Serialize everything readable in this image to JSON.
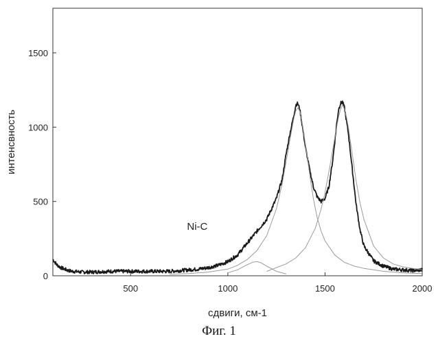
{
  "chart_data": {
    "type": "line",
    "title": "",
    "xlabel": "сдвиги, см-1",
    "ylabel": "интенсвность",
    "xlim": [
      100,
      2000
    ],
    "ylim": [
      0,
      1800
    ],
    "x_ticks": [
      500,
      1000,
      1500,
      2000
    ],
    "y_ticks": [
      0,
      500,
      1000,
      1500
    ],
    "grid": false,
    "annotations": [
      {
        "text": "Ni-C",
        "x": 790,
        "y": 310
      }
    ],
    "caption": "Фиг. 1",
    "series": [
      {
        "role": "measured spectrum",
        "x": [
          100,
          120,
          140,
          160,
          180,
          200,
          250,
          300,
          350,
          400,
          450,
          500,
          550,
          600,
          650,
          700,
          750,
          800,
          850,
          900,
          950,
          1000,
          1050,
          1100,
          1150,
          1200,
          1250,
          1280,
          1300,
          1320,
          1340,
          1350,
          1360,
          1370,
          1380,
          1400,
          1420,
          1440,
          1460,
          1480,
          1500,
          1520,
          1540,
          1560,
          1570,
          1580,
          1590,
          1600,
          1620,
          1640,
          1660,
          1680,
          1700,
          1750,
          1800,
          1850,
          1900,
          1950,
          2000
        ],
        "y": [
          110,
          75,
          55,
          45,
          35,
          30,
          25,
          25,
          28,
          30,
          30,
          30,
          30,
          30,
          30,
          30,
          35,
          40,
          45,
          55,
          70,
          95,
          140,
          220,
          300,
          380,
          520,
          650,
          820,
          960,
          1080,
          1150,
          1160,
          1120,
          1040,
          860,
          720,
          600,
          530,
          500,
          520,
          600,
          780,
          1020,
          1120,
          1160,
          1170,
          1130,
          960,
          720,
          480,
          310,
          200,
          100,
          65,
          45,
          40,
          35,
          40
        ]
      },
      {
        "role": "fit component D",
        "x": [
          700,
          800,
          900,
          1000,
          1050,
          1100,
          1150,
          1200,
          1250,
          1280,
          1300,
          1320,
          1340,
          1350,
          1360,
          1370,
          1380,
          1400,
          1420,
          1440,
          1460,
          1480,
          1500,
          1550,
          1600,
          1650,
          1700,
          1750,
          1800,
          1900,
          2000
        ],
        "y": [
          10,
          15,
          25,
          45,
          70,
          110,
          170,
          270,
          450,
          620,
          770,
          920,
          1060,
          1110,
          1130,
          1110,
          1050,
          880,
          690,
          520,
          390,
          300,
          235,
          140,
          90,
          65,
          50,
          40,
          30,
          20,
          15
        ]
      },
      {
        "role": "fit component G",
        "x": [
          1200,
          1300,
          1350,
          1400,
          1450,
          1480,
          1500,
          1520,
          1540,
          1560,
          1570,
          1580,
          1590,
          1600,
          1610,
          1620,
          1640,
          1660,
          1680,
          1700,
          1750,
          1800,
          1850,
          1900,
          2000
        ],
        "y": [
          30,
          80,
          120,
          190,
          320,
          450,
          560,
          700,
          850,
          1000,
          1070,
          1120,
          1150,
          1120,
          1070,
          1000,
          820,
          640,
          490,
          380,
          200,
          120,
          80,
          60,
          40
        ]
      },
      {
        "role": "fit component small",
        "x": [
          1000,
          1050,
          1100,
          1130,
          1150,
          1170,
          1200,
          1250,
          1300
        ],
        "y": [
          20,
          40,
          75,
          92,
          95,
          88,
          65,
          30,
          12
        ]
      }
    ]
  }
}
